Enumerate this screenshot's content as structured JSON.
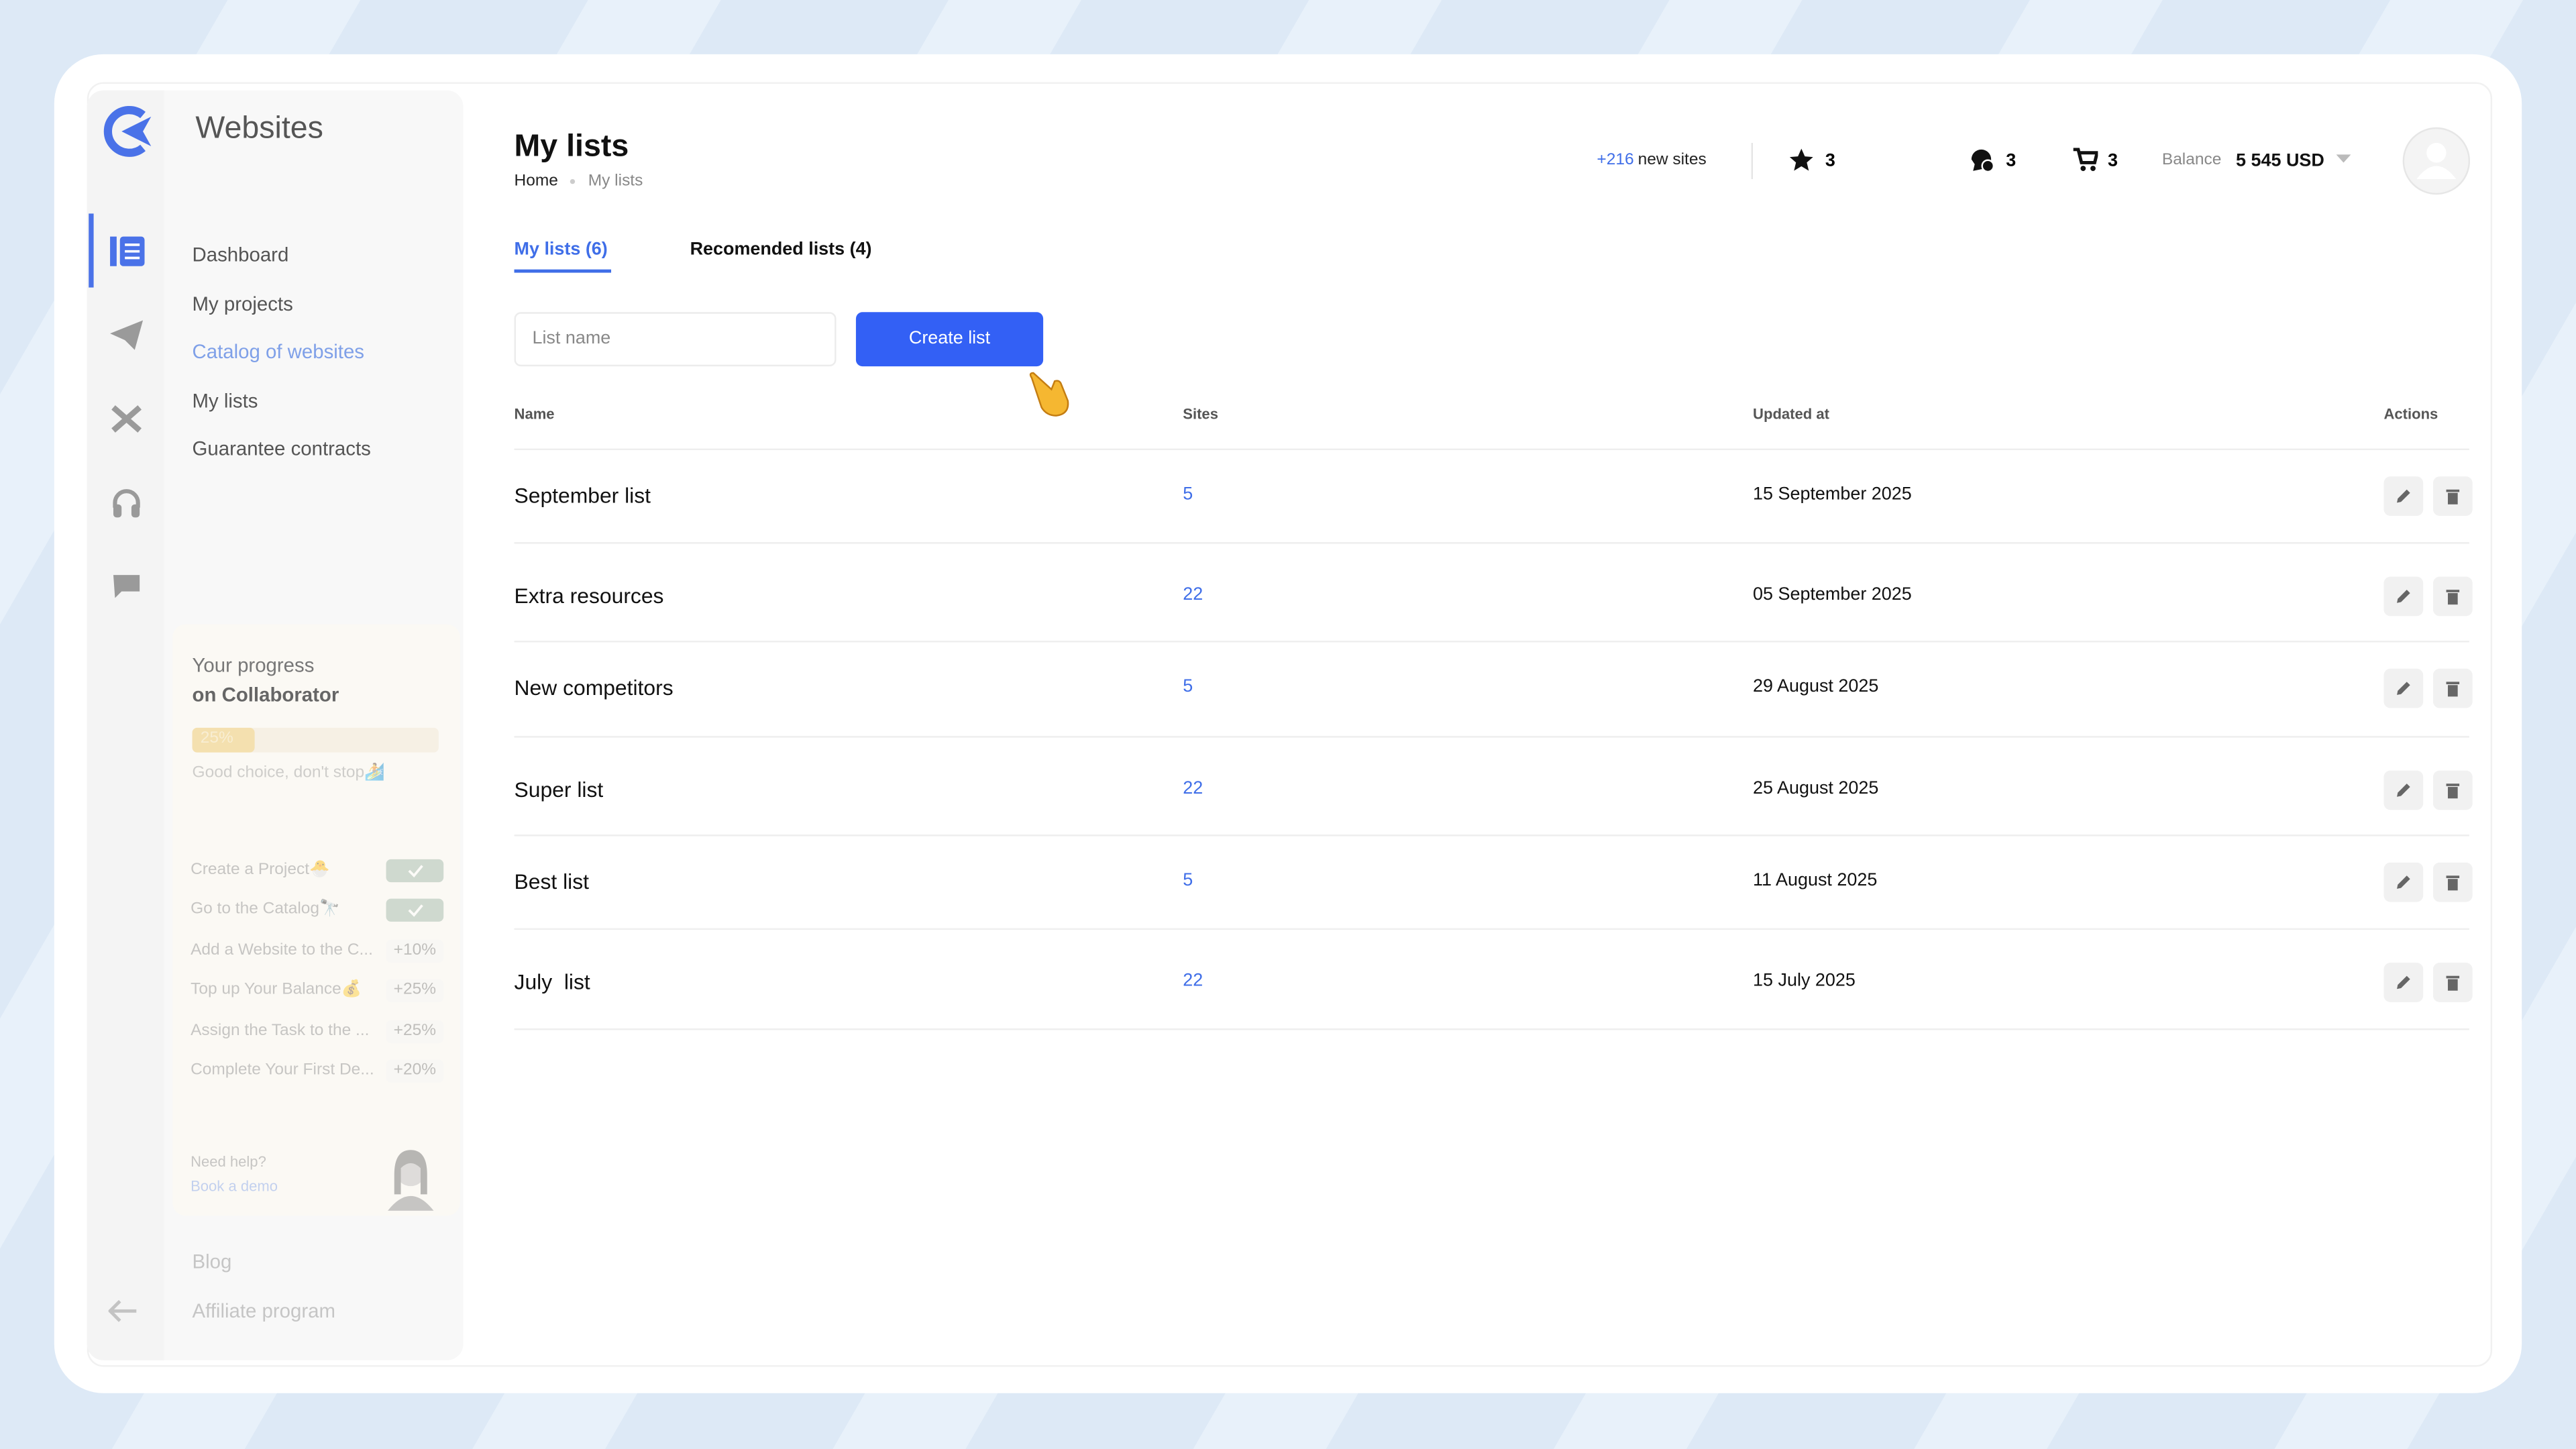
{
  "sidebar": {
    "brand": "Websites",
    "nav": [
      "Dashboard",
      "My projects",
      "Catalog of websites",
      "My lists",
      "Guarantee contracts"
    ],
    "progress": {
      "title": "Your progress",
      "subtitle": "on Collaborator",
      "percent": {
        "value": 25,
        "label": "25%"
      },
      "note": "Good choice, don't stop🏄"
    },
    "tasks": [
      {
        "label": "Create a Project🐣",
        "done": true
      },
      {
        "label": "Go to the Catalog🔭",
        "done": true
      },
      {
        "label": "Add a Website to the C...",
        "bonus": "+10%"
      },
      {
        "label": "Top up Your Balance💰",
        "bonus": "+25%"
      },
      {
        "label": "Assign the Task to the ...",
        "bonus": "+25%"
      },
      {
        "label": "Complete Your First De...",
        "bonus": "+20%"
      }
    ],
    "help": {
      "title": "Need help?",
      "link": "Book a demo"
    },
    "footer": [
      "Blog",
      "Affiliate program"
    ]
  },
  "header": {
    "title": "My lists",
    "breadcrumb": [
      "Home",
      "My lists"
    ],
    "new_sites_count": "+216",
    "new_sites_label": "new sites",
    "favorites": 3,
    "messages": 3,
    "cart": 3,
    "balance_label": "Balance",
    "balance": "5 545 USD"
  },
  "tabs": [
    "My lists (6)",
    "Recomended lists (4)"
  ],
  "form": {
    "placeholder": "List name",
    "button": "Create list"
  },
  "table": {
    "columns": [
      "Name",
      "Sites",
      "Updated at",
      "Actions"
    ],
    "rows": [
      [
        "September list",
        5,
        "15 September 2025"
      ],
      [
        "Extra resources",
        22,
        "05 September 2025"
      ],
      [
        "New competitors",
        5,
        "29 August 2025"
      ],
      [
        "Super list",
        22,
        "25 August 2025"
      ],
      [
        "Best list",
        5,
        "11 August 2025"
      ],
      [
        "July  list",
        22,
        "15 July 2025"
      ]
    ]
  }
}
